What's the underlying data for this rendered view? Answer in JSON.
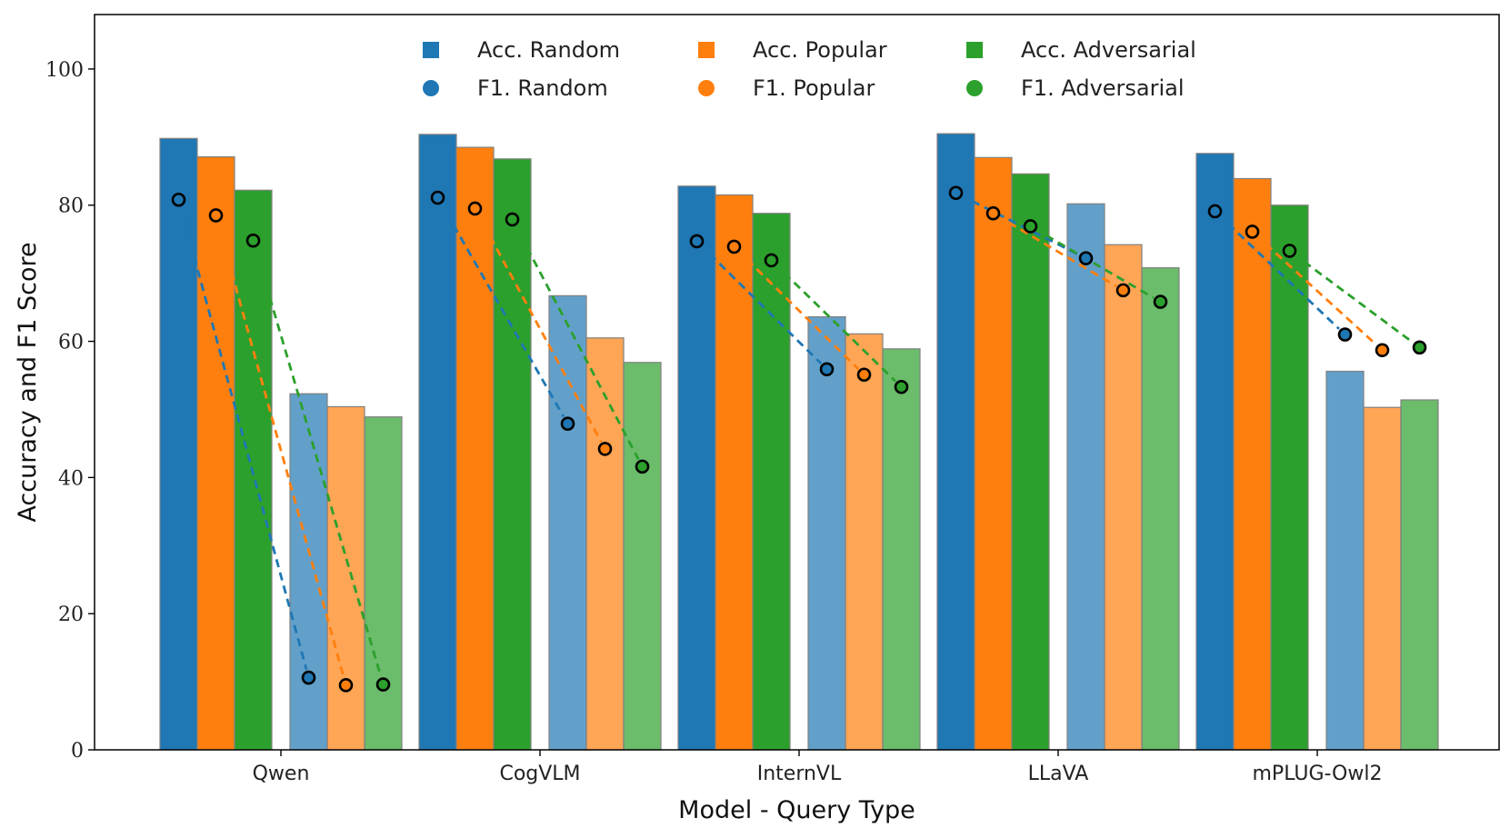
{
  "chart_data": {
    "type": "bar",
    "title": "",
    "xlabel": "Model - Query Type",
    "ylabel": "Accuracy and F1 Score",
    "ylim": [
      0,
      108
    ],
    "yticks": [
      0,
      20,
      40,
      60,
      80,
      100
    ],
    "categories": [
      "Qwen",
      "CogVLM",
      "InternVL",
      "LLaVA",
      "mPLUG-Owl2"
    ],
    "legend_position": "top-center",
    "series_accuracy": [
      {
        "name": "Acc. Random",
        "color": "#1f77b4",
        "query": "normal",
        "values": [
          89.8,
          90.4,
          82.8,
          90.5,
          87.6
        ]
      },
      {
        "name": "Acc. Popular",
        "color": "#ff7f0e",
        "query": "normal",
        "values": [
          87.1,
          88.5,
          81.5,
          87.0,
          83.9
        ]
      },
      {
        "name": "Acc. Adversarial",
        "color": "#2ca02c",
        "query": "normal",
        "values": [
          82.2,
          86.8,
          78.8,
          84.6,
          80.0
        ]
      },
      {
        "name": "Acc. Random",
        "color": "#1f77b4",
        "query": "alternate",
        "values": [
          52.3,
          66.7,
          63.6,
          80.2,
          55.6
        ]
      },
      {
        "name": "Acc. Popular",
        "color": "#ff7f0e",
        "query": "alternate",
        "values": [
          50.4,
          60.5,
          61.1,
          74.2,
          50.3
        ]
      },
      {
        "name": "Acc. Adversarial",
        "color": "#2ca02c",
        "query": "alternate",
        "values": [
          48.9,
          56.9,
          58.9,
          70.8,
          51.4
        ]
      }
    ],
    "series_f1": [
      {
        "name": "F1. Random",
        "color": "#1f77b4",
        "normal": [
          80.8,
          81.1,
          74.7,
          81.8,
          79.1
        ],
        "alternate": [
          10.6,
          47.9,
          55.9,
          72.2,
          61.0
        ]
      },
      {
        "name": "F1. Popular",
        "color": "#ff7f0e",
        "normal": [
          78.5,
          79.5,
          73.9,
          78.8,
          76.1
        ],
        "alternate": [
          9.5,
          44.2,
          55.1,
          67.5,
          58.7
        ]
      },
      {
        "name": "F1. Adversarial",
        "color": "#2ca02c",
        "normal": [
          74.8,
          77.9,
          71.9,
          76.9,
          73.3
        ],
        "alternate": [
          9.6,
          41.6,
          53.3,
          65.8,
          59.1
        ]
      }
    ],
    "legend": [
      {
        "label": "Acc. Random",
        "marker": "square",
        "color": "#1f77b4"
      },
      {
        "label": "Acc. Popular",
        "marker": "square",
        "color": "#ff7f0e"
      },
      {
        "label": "Acc. Adversarial",
        "marker": "square",
        "color": "#2ca02c"
      },
      {
        "label": "F1. Random",
        "marker": "circle",
        "color": "#1f77b4"
      },
      {
        "label": "F1. Popular",
        "marker": "circle",
        "color": "#ff7f0e"
      },
      {
        "label": "F1. Adversarial",
        "marker": "circle",
        "color": "#2ca02c"
      }
    ]
  }
}
